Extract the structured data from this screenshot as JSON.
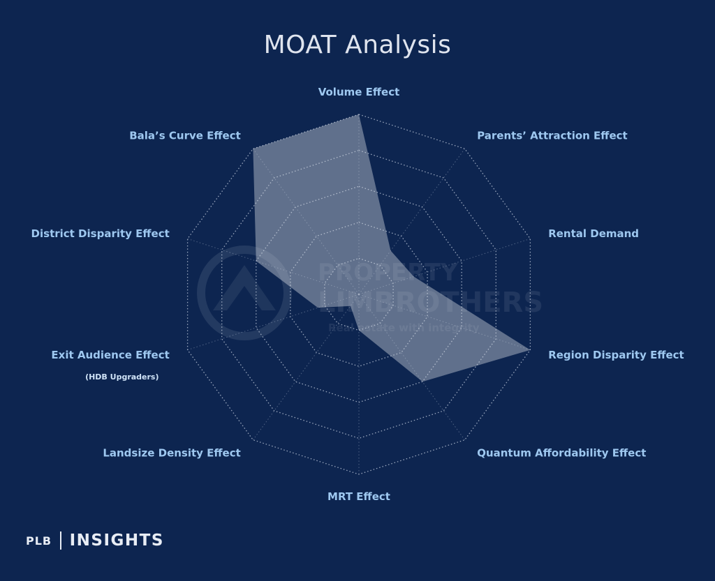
{
  "chart_data": {
    "type": "radar",
    "title": "MOAT Analysis",
    "axes": [
      {
        "label": "Volume Effect",
        "sublabel": ""
      },
      {
        "label": "Parents’ Attraction Effect",
        "sublabel": ""
      },
      {
        "label": "Rental Demand",
        "sublabel": ""
      },
      {
        "label": "Region Disparity Effect",
        "sublabel": ""
      },
      {
        "label": "Quantum Affordability Effect",
        "sublabel": ""
      },
      {
        "label": "MRT Effect",
        "sublabel": ""
      },
      {
        "label": "Landsize Density Effect",
        "sublabel": ""
      },
      {
        "label": "Exit Audience Effect",
        "sublabel": "(HDB Upgraders)"
      },
      {
        "label": "District Disparity Effect",
        "sublabel": ""
      },
      {
        "label": "Bala’s Curve Effect",
        "sublabel": ""
      }
    ],
    "rings": 5,
    "max": 5,
    "values": [
      5,
      1.5,
      1.6,
      5,
      3,
      1,
      0.4,
      1.2,
      3,
      5
    ],
    "colors": {
      "background": "#0d2550",
      "area": "#d5d9e0",
      "label": "#9ec8f0"
    }
  },
  "watermark": {
    "line1": "PROPERTY",
    "line2": "LIMBROTHERS",
    "tagline": "Real estate with integrity"
  },
  "branding": {
    "left": "PLB",
    "right": "INSIGHTS"
  }
}
